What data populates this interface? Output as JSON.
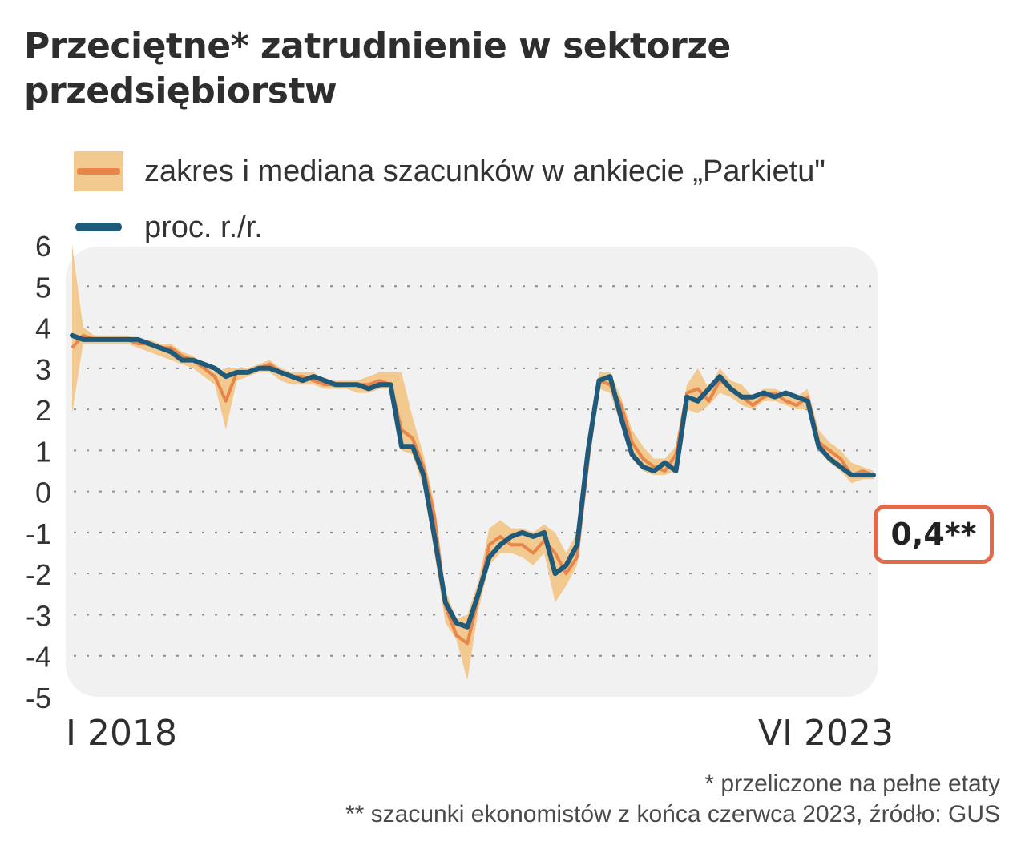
{
  "title_line1": "Przeciętne* zatrudnienie w sektorze",
  "title_line2": "przedsiębiorstw",
  "legend": {
    "range_label": "zakres i mediana szacunków w ankiecie „Parkietu\"",
    "line_label": "proc. r./r."
  },
  "x_start_label": "I 2018",
  "x_end_label": "VI 2023",
  "callout": "0,4**",
  "footnote1": "* przeliczone na pełne etaty",
  "footnote2": "** szacunki ekonomistów z końca czerwca 2023, źródło: GUS",
  "colors": {
    "band": "#f2c98f",
    "median": "#e8854a",
    "actual": "#1f5a7a",
    "panel": "#f1f1f1",
    "callout_border": "#e06a4a"
  },
  "chart_data": {
    "type": "line",
    "title": "Przeciętne* zatrudnienie w sektorze przedsiębiorstw",
    "ylabel": "",
    "ylim": [
      -5,
      6
    ],
    "yticks": [
      6,
      5,
      4,
      3,
      2,
      1,
      0,
      -1,
      -2,
      -3,
      -4,
      -5
    ],
    "x_start": "I 2018",
    "x_end": "VI 2023",
    "grid": "horizontal dotted",
    "series": [
      {
        "name": "proc. r./r.",
        "values": [
          3.8,
          3.7,
          3.7,
          3.7,
          3.7,
          3.7,
          3.7,
          3.6,
          3.5,
          3.4,
          3.2,
          3.2,
          3.1,
          3.0,
          2.8,
          2.9,
          2.9,
          3.0,
          3.0,
          2.9,
          2.8,
          2.7,
          2.8,
          2.7,
          2.6,
          2.6,
          2.6,
          2.5,
          2.6,
          2.6,
          1.1,
          1.1,
          0.4,
          -1.1,
          -2.7,
          -3.2,
          -3.3,
          -2.5,
          -1.6,
          -1.3,
          -1.1,
          -1.0,
          -1.1,
          -1.0,
          -2.0,
          -1.8,
          -1.3,
          1.0,
          2.7,
          2.8,
          1.8,
          0.9,
          0.6,
          0.5,
          0.7,
          0.5,
          2.3,
          2.2,
          2.5,
          2.8,
          2.5,
          2.3,
          2.3,
          2.4,
          2.3,
          2.4,
          2.3,
          2.2,
          1.1,
          0.8,
          0.6,
          0.4,
          0.4,
          0.4
        ]
      },
      {
        "name": "zakres i mediana szacunków w ankiecie „Parkietu\"",
        "median": [
          3.5,
          3.8,
          3.7,
          3.7,
          3.7,
          3.7,
          3.6,
          3.6,
          3.5,
          3.5,
          3.3,
          3.2,
          3.0,
          2.8,
          2.2,
          2.9,
          2.9,
          3.0,
          3.1,
          2.9,
          2.8,
          2.8,
          2.7,
          2.6,
          2.6,
          2.6,
          2.6,
          2.6,
          2.7,
          2.6,
          1.5,
          1.3,
          0.6,
          -0.6,
          -2.8,
          -3.5,
          -3.7,
          -2.6,
          -1.3,
          -1.1,
          -1.3,
          -1.3,
          -1.5,
          -1.2,
          -1.5,
          -2.0,
          -1.6,
          0.8,
          2.7,
          2.6,
          2.1,
          1.2,
          0.8,
          0.6,
          0.5,
          0.9,
          2.4,
          2.5,
          2.2,
          2.7,
          2.5,
          2.3,
          2.1,
          2.3,
          2.4,
          2.2,
          2.1,
          2.3,
          1.2,
          1.0,
          0.8,
          0.4,
          0.5,
          0.4
        ],
        "low": [
          1.9,
          3.6,
          3.6,
          3.6,
          3.6,
          3.6,
          3.5,
          3.4,
          3.3,
          3.2,
          3.1,
          3.0,
          2.8,
          2.6,
          1.5,
          2.7,
          2.8,
          2.9,
          2.9,
          2.7,
          2.6,
          2.6,
          2.6,
          2.5,
          2.5,
          2.5,
          2.4,
          2.4,
          2.5,
          2.5,
          1.0,
          0.9,
          0.1,
          -1.5,
          -3.2,
          -3.6,
          -4.6,
          -2.9,
          -1.8,
          -1.5,
          -1.5,
          -1.6,
          -1.8,
          -1.5,
          -2.7,
          -2.3,
          -1.8,
          0.4,
          2.5,
          2.4,
          1.6,
          0.8,
          0.5,
          0.4,
          0.4,
          0.5,
          2.0,
          1.9,
          2.1,
          2.4,
          2.3,
          2.1,
          2.0,
          2.2,
          2.2,
          2.1,
          2.0,
          2.0,
          1.0,
          0.7,
          0.5,
          0.2,
          0.3,
          0.3
        ],
        "high": [
          6.0,
          4.0,
          3.8,
          3.8,
          3.8,
          3.8,
          3.7,
          3.7,
          3.6,
          3.6,
          3.4,
          3.3,
          3.1,
          2.9,
          3.0,
          3.0,
          3.0,
          3.1,
          3.2,
          3.0,
          2.9,
          2.9,
          2.9,
          2.7,
          2.7,
          2.7,
          2.7,
          2.8,
          2.9,
          2.9,
          2.9,
          1.8,
          0.9,
          -0.3,
          -2.4,
          -3.1,
          -3.0,
          -2.2,
          -0.9,
          -0.7,
          -0.9,
          -0.9,
          -1.0,
          -0.8,
          -1.0,
          -1.5,
          -1.0,
          1.3,
          2.9,
          2.9,
          2.3,
          1.5,
          1.1,
          0.8,
          0.8,
          1.1,
          2.6,
          3.0,
          2.5,
          3.0,
          2.7,
          2.6,
          2.3,
          2.5,
          2.5,
          2.4,
          2.3,
          2.5,
          1.5,
          1.2,
          1.0,
          0.7,
          0.6,
          0.5
        ]
      }
    ]
  }
}
